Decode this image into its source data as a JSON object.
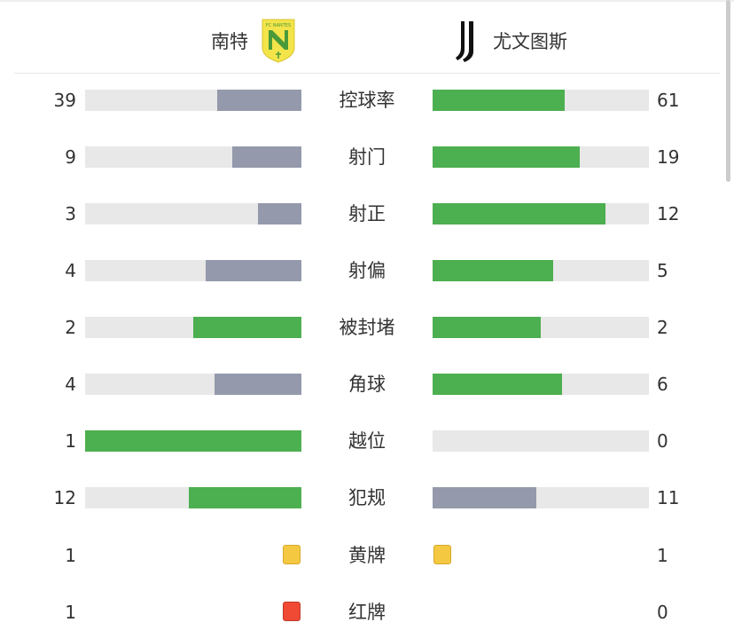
{
  "header": {
    "home_team": "南特",
    "away_team": "尤文图斯",
    "home_logo_text": "FC NANTES",
    "away_logo_text": "J"
  },
  "colors": {
    "leader": "#4caf50",
    "trailer": "#949aab",
    "track": "#e8e8e8",
    "yellow": "#f5c842",
    "red": "#f04a35"
  },
  "stats": [
    {
      "label": "控球率",
      "home": "39",
      "away": "61"
    },
    {
      "label": "射门",
      "home": "9",
      "away": "19"
    },
    {
      "label": "射正",
      "home": "3",
      "away": "12"
    },
    {
      "label": "射偏",
      "home": "4",
      "away": "5"
    },
    {
      "label": "被封堵",
      "home": "2",
      "away": "2"
    },
    {
      "label": "角球",
      "home": "4",
      "away": "6"
    },
    {
      "label": "越位",
      "home": "1",
      "away": "0"
    },
    {
      "label": "犯规",
      "home": "12",
      "away": "11"
    }
  ],
  "cards": [
    {
      "label": "黄牌",
      "home": "1",
      "away": "1",
      "type": "yellow"
    },
    {
      "label": "红牌",
      "home": "1",
      "away": "0",
      "type": "red"
    }
  ]
}
